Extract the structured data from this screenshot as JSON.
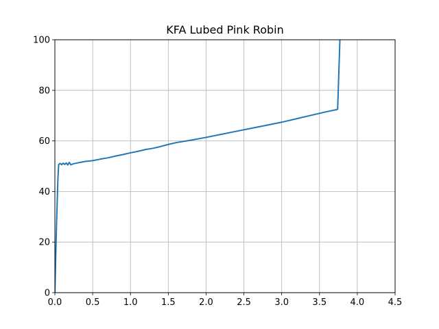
{
  "chart_data": {
    "type": "line",
    "title": "KFA Lubed Pink Robin",
    "xlabel": "",
    "ylabel": "",
    "xlim": [
      0,
      4.5
    ],
    "ylim": [
      0,
      100
    ],
    "xticks": [
      "0.0",
      "0.5",
      "1.0",
      "1.5",
      "2.0",
      "2.5",
      "3.0",
      "3.5",
      "4.0",
      "4.5"
    ],
    "yticks": [
      "0",
      "20",
      "40",
      "60",
      "80",
      "100"
    ],
    "grid": true,
    "legend": "none",
    "series": [
      {
        "color": "#1f77b4",
        "x": [
          0.0,
          0.02,
          0.04,
          0.05,
          0.07,
          0.09,
          0.11,
          0.13,
          0.15,
          0.17,
          0.19,
          0.21,
          0.25,
          0.3,
          0.35,
          0.4,
          0.5,
          0.6,
          0.7,
          0.8,
          0.9,
          1.0,
          1.1,
          1.2,
          1.3,
          1.4,
          1.5,
          1.6,
          1.8,
          2.0,
          2.2,
          2.4,
          2.6,
          2.8,
          3.0,
          3.2,
          3.4,
          3.6,
          3.73,
          3.74,
          3.77
        ],
        "values": [
          0,
          25,
          45,
          50.7,
          51.1,
          50.6,
          51.2,
          50.7,
          51.3,
          50.5,
          51.5,
          50.6,
          51.0,
          51.3,
          51.6,
          51.9,
          52.2,
          52.8,
          53.3,
          54.0,
          54.6,
          55.3,
          55.9,
          56.6,
          57.1,
          57.8,
          58.6,
          59.3,
          60.3,
          61.4,
          62.6,
          63.8,
          65.0,
          66.2,
          67.4,
          68.8,
          70.2,
          71.6,
          72.4,
          72.6,
          100
        ]
      }
    ]
  }
}
